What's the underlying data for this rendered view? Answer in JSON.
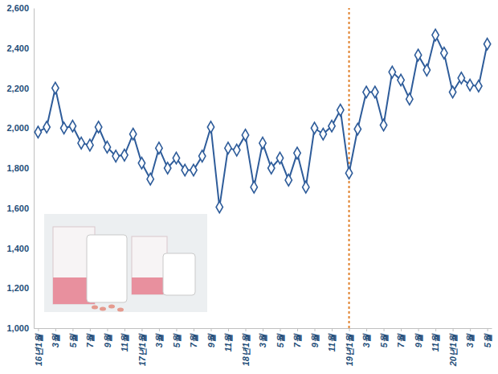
{
  "chart_data": {
    "type": "line",
    "categories": [
      "16년1월",
      null,
      "3월",
      null,
      "5월",
      null,
      "7월",
      null,
      "9월",
      null,
      "11월",
      null,
      "17년1월",
      null,
      "3월",
      null,
      "5월",
      null,
      "7월",
      null,
      "9월",
      null,
      "11월",
      null,
      "18년1월",
      null,
      "3월",
      null,
      "5월",
      null,
      "7월",
      null,
      "9월",
      null,
      "11월",
      null,
      "19년1월",
      null,
      "3월",
      null,
      "5월",
      null,
      "7월",
      null,
      "9월",
      null,
      "11월",
      null,
      "20년1월",
      null,
      "3월",
      null,
      "5월"
    ],
    "values": [
      1980,
      2005,
      2200,
      2000,
      2010,
      1925,
      1915,
      2005,
      1905,
      1860,
      1865,
      1970,
      1825,
      1745,
      1900,
      1800,
      1850,
      1790,
      1790,
      1860,
      2005,
      1605,
      1900,
      1890,
      1965,
      1705,
      1925,
      1800,
      1850,
      1740,
      1875,
      1705,
      2000,
      1970,
      2010,
      2090,
      1775,
      1995,
      2180,
      2180,
      2015,
      2280,
      2240,
      2145,
      2365,
      2290,
      2465,
      2375,
      2180,
      2250,
      2215,
      2210,
      2420
    ],
    "color": "#2e5c9a",
    "marker": "diamond",
    "ylim": [
      1000,
      2600
    ],
    "yticks": [
      {
        "value": 1000,
        "label": "1,000"
      },
      {
        "value": 1200,
        "label": "1,200"
      },
      {
        "value": 1400,
        "label": "1,400"
      },
      {
        "value": 1600,
        "label": "1,600"
      },
      {
        "value": 1800,
        "label": "1,800"
      },
      {
        "value": 2000,
        "label": "2,000"
      },
      {
        "value": 2200,
        "label": "2,200"
      },
      {
        "value": 2400,
        "label": "2,400"
      },
      {
        "value": 2600,
        "label": "2,600"
      }
    ],
    "grid": false,
    "reference_line": {
      "x": 36,
      "color": "#e0802a",
      "line_style": "dotted"
    }
  }
}
